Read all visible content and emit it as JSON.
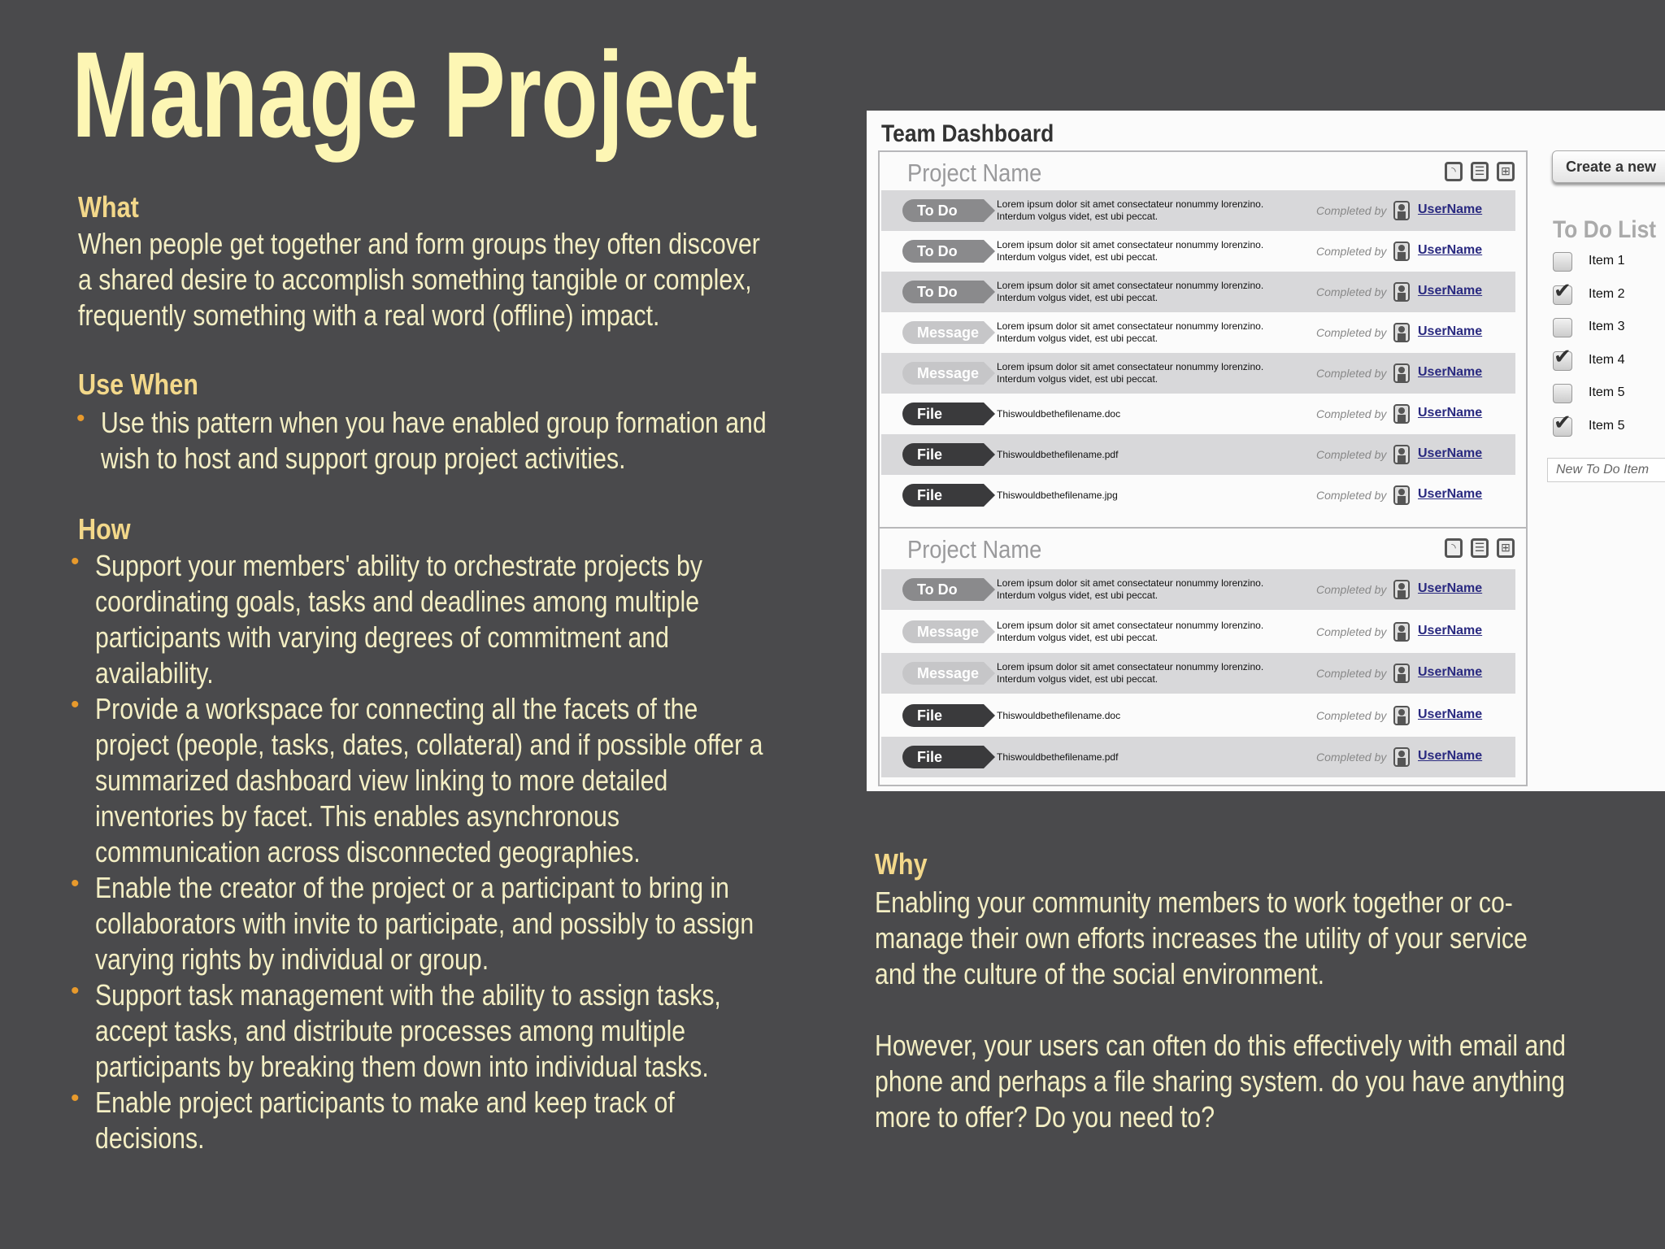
{
  "title": "Manage Project",
  "what": {
    "heading": "What",
    "lines": [
      "When people get together and form groups they often discover",
      "a shared desire to accomplish something tangible or complex,",
      "frequently something with a real word (offline) impact."
    ]
  },
  "use_when": {
    "heading": "Use When",
    "bullets": [
      [
        "Use this pattern when you have enabled group formation and",
        "wish to host and support group project activities."
      ]
    ]
  },
  "how": {
    "heading": "How",
    "bullets": [
      [
        "Support your members' ability to orchestrate projects by",
        "coordinating goals, tasks and deadlines among multiple",
        "participants with varying degrees of commitment and",
        "availability."
      ],
      [
        "Provide a workspace for connecting all the facets of the",
        "project (people, tasks, dates, collateral) and if possible offer a",
        "summarized dashboard view linking to more detailed",
        "inventories by facet. This enables asynchronous",
        "communication across disconnected geographies."
      ],
      [
        "Enable the creator of the project or a participant to bring in",
        "collaborators with invite to participate, and possibly to assign",
        "varying rights by individual or group."
      ],
      [
        "Support task management with the ability to assign tasks,",
        "accept tasks, and distribute processes among multiple",
        "participants by breaking them down into individual tasks."
      ],
      [
        "Enable project participants to make and keep track of",
        "decisions."
      ]
    ]
  },
  "why": {
    "heading": "Why",
    "paragraphs": [
      [
        "Enabling your community members to work together or co-",
        "manage their own efforts increases the utility of your service",
        "and the culture of the social environment."
      ],
      [
        "However, your users can often do this effectively with email and",
        "phone and perhaps a file sharing system. do you have anything",
        "more to offer? Do you need to?"
      ]
    ]
  },
  "dashboard": {
    "title": "Team Dashboard",
    "badge_colors": {
      "To Do": "#8a8a8c",
      "Message": "#c6c6c8",
      "File": "#3a3a3c"
    },
    "icons": [
      "rss-icon",
      "list-view-icon",
      "grid-view-icon"
    ],
    "projects": [
      {
        "name": "Project Name",
        "rows": [
          {
            "type": "To Do",
            "text": [
              "Lorem ipsum dolor sit amet consectateur nonummy lorenzino.",
              "Interdum volgus videt, est ubi peccat."
            ],
            "completed_by": "Completed by",
            "user": "UserName"
          },
          {
            "type": "To Do",
            "text": [
              "Lorem ipsum dolor sit amet consectateur nonummy lorenzino.",
              "Interdum volgus videt, est ubi peccat."
            ],
            "completed_by": "Completed by",
            "user": "UserName"
          },
          {
            "type": "To Do",
            "text": [
              "Lorem ipsum dolor sit amet consectateur nonummy lorenzino.",
              "Interdum volgus videt, est ubi peccat."
            ],
            "completed_by": "Completed by",
            "user": "UserName"
          },
          {
            "type": "Message",
            "text": [
              "Lorem ipsum dolor sit amet consectateur nonummy lorenzino.",
              "Interdum volgus videt, est ubi peccat."
            ],
            "completed_by": "Completed by",
            "user": "UserName"
          },
          {
            "type": "Message",
            "text": [
              "Lorem ipsum dolor sit amet consectateur nonummy lorenzino.",
              "Interdum volgus videt, est ubi peccat."
            ],
            "completed_by": "Completed by",
            "user": "UserName"
          },
          {
            "type": "File",
            "text": [
              "Thiswouldbethefilename.doc"
            ],
            "completed_by": "Completed by",
            "user": "UserName"
          },
          {
            "type": "File",
            "text": [
              "Thiswouldbethefilename.pdf"
            ],
            "completed_by": "Completed by",
            "user": "UserName"
          },
          {
            "type": "File",
            "text": [
              "Thiswouldbethefilename.jpg"
            ],
            "completed_by": "Completed by",
            "user": "UserName"
          }
        ]
      },
      {
        "name": "Project Name",
        "rows": [
          {
            "type": "To Do",
            "text": [
              "Lorem ipsum dolor sit amet consectateur nonummy lorenzino.",
              "Interdum volgus videt, est ubi peccat."
            ],
            "completed_by": "Completed by",
            "user": "UserName"
          },
          {
            "type": "Message",
            "text": [
              "Lorem ipsum dolor sit amet consectateur nonummy lorenzino.",
              "Interdum volgus videt, est ubi peccat."
            ],
            "completed_by": "Completed by",
            "user": "UserName"
          },
          {
            "type": "Message",
            "text": [
              "Lorem ipsum dolor sit amet consectateur nonummy lorenzino.",
              "Interdum volgus videt, est ubi peccat."
            ],
            "completed_by": "Completed by",
            "user": "UserName"
          },
          {
            "type": "File",
            "text": [
              "Thiswouldbethefilename.doc"
            ],
            "completed_by": "Completed by",
            "user": "UserName"
          },
          {
            "type": "File",
            "text": [
              "Thiswouldbethefilename.pdf"
            ],
            "completed_by": "Completed by",
            "user": "UserName"
          }
        ]
      }
    ],
    "create_button": "Create a new",
    "todo": {
      "heading": "To Do List",
      "items": [
        {
          "label": "Item 1",
          "checked": false
        },
        {
          "label": "Item 2",
          "checked": true
        },
        {
          "label": "Item 3",
          "checked": false
        },
        {
          "label": "Item 4",
          "checked": true
        },
        {
          "label": "Item 5",
          "checked": false
        },
        {
          "label": "Item 5",
          "checked": true
        }
      ],
      "new_item_placeholder": "New To Do Item"
    }
  }
}
